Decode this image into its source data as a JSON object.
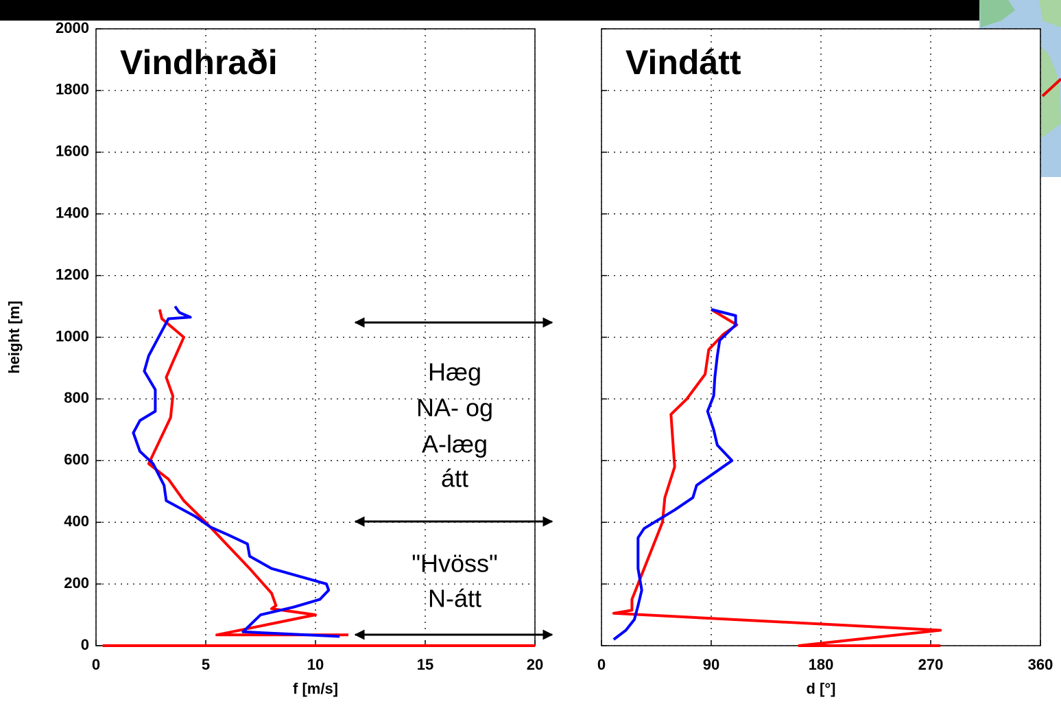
{
  "chart_data": [
    {
      "type": "line",
      "title": "Vindhraði",
      "xlabel": "f [m/s]",
      "ylabel": "height [m]",
      "xlim": [
        0,
        20
      ],
      "xticks": [
        0,
        5,
        10,
        15,
        20
      ],
      "ylim": [
        0,
        2000
      ],
      "yticks": [
        0,
        200,
        400,
        600,
        800,
        1000,
        1200,
        1400,
        1600,
        1800,
        2000
      ],
      "grid": true,
      "annotations": [
        "Hæg",
        "NA- og",
        "A-læg",
        "átt",
        "\"Hvöss\"",
        "N-átt"
      ],
      "series": [
        {
          "color": "#ff0000",
          "x": [
            0.3,
            20,
            null,
            11.5,
            5.5,
            10,
            8,
            8.2,
            8,
            7,
            5,
            4,
            3.3,
            2.4,
            2.8,
            3.4,
            3.5,
            3.2,
            3.5,
            4,
            3,
            2.9
          ],
          "values": [
            0,
            0,
            null,
            35,
            35,
            100,
            120,
            130,
            170,
            250,
            400,
            470,
            540,
            590,
            650,
            740,
            810,
            870,
            920,
            1000,
            1060,
            1090
          ]
        },
        {
          "color": "#0000ff",
          "x": [
            11.1,
            6.7,
            7.5,
            9,
            10.2,
            10.6,
            10.5,
            8,
            7,
            6.9,
            6,
            5.2,
            4.5,
            3.2,
            3.1,
            2.6,
            2,
            1.7,
            2,
            2.7,
            2.7,
            2.2,
            2.4,
            3.3,
            4.3,
            3.8,
            3.6
          ],
          "values": [
            30,
            45,
            100,
            125,
            150,
            180,
            200,
            250,
            290,
            330,
            360,
            385,
            420,
            470,
            520,
            590,
            630,
            690,
            730,
            760,
            830,
            890,
            940,
            1060,
            1065,
            1080,
            1100
          ]
        }
      ]
    },
    {
      "type": "line",
      "title": "Vindátt",
      "xlabel": "d [°]",
      "xlim": [
        0,
        360
      ],
      "xticks": [
        0,
        90,
        180,
        270,
        360
      ],
      "ylim": [
        0,
        2000
      ],
      "yticks": [
        0,
        200,
        400,
        600,
        800,
        1000,
        1200,
        1400,
        1600,
        1800,
        2000
      ],
      "grid": true,
      "series": [
        {
          "color": "#ff0000",
          "x": [
            278,
            162,
            278,
            10,
            25,
            25,
            30,
            40,
            50,
            52,
            60,
            57,
            70,
            85,
            88,
            100,
            111,
            90
          ],
          "values": [
            0,
            0,
            50,
            105,
            115,
            150,
            200,
            300,
            400,
            480,
            580,
            750,
            800,
            880,
            960,
            1010,
            1040,
            1090
          ]
        },
        {
          "color": "#0000ff",
          "x": [
            10,
            20,
            27,
            30,
            33,
            30,
            30,
            35,
            60,
            75,
            78,
            107,
            95,
            92,
            87,
            92,
            93,
            95,
            97,
            110,
            110,
            90
          ],
          "values": [
            20,
            50,
            85,
            130,
            180,
            250,
            350,
            380,
            440,
            480,
            520,
            600,
            650,
            700,
            760,
            810,
            870,
            940,
            990,
            1040,
            1070,
            1090
          ]
        }
      ]
    }
  ]
}
